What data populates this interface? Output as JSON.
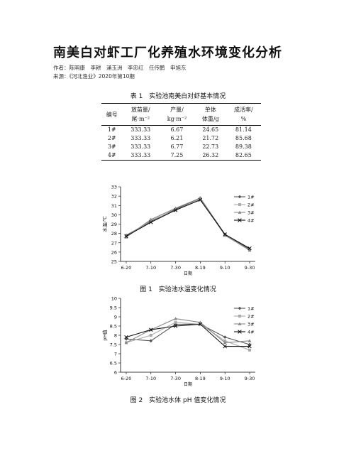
{
  "title": "南美白对虾工厂化养殖水环境变化分析",
  "authors": "作者：陈明康　李耕　涌玉洲　李忠红　任传鹏　申旭东",
  "source": "来源：《河北渔业》2020年第10期",
  "table": {
    "caption": "表 1　实验池南美白对虾基本情况",
    "headers": [
      [
        "编号",
        ""
      ],
      [
        "放苗量/",
        "尾·m⁻²"
      ],
      [
        "产量/",
        "kg·m⁻²"
      ],
      [
        "单体",
        "体重/g"
      ],
      [
        "成活率/",
        "%"
      ]
    ],
    "rows": [
      [
        "1#",
        "333.33",
        "6.67",
        "24.65",
        "81.14"
      ],
      [
        "2#",
        "333.33",
        "6.21",
        "21.72",
        "85.68"
      ],
      [
        "3#",
        "333.33",
        "6.77",
        "22.73",
        "89.38"
      ],
      [
        "4#",
        "333.33",
        "7.25",
        "26.32",
        "82.65"
      ]
    ]
  },
  "chart_data": [
    {
      "type": "line",
      "caption": "图 1　实验池水温变化情况",
      "xlabel": "日期",
      "ylabel": "水温/℃",
      "categories": [
        "6-20",
        "7-10",
        "7-30",
        "8-19",
        "9-10",
        "9-30"
      ],
      "ylim": [
        25,
        33
      ],
      "yticks": [
        25,
        26,
        27,
        28,
        29,
        30,
        31,
        32,
        33
      ],
      "series": [
        {
          "name": "1#",
          "values": [
            27.8,
            29.3,
            30.6,
            31.8,
            27.9,
            26.3
          ],
          "color": "#555555",
          "marker": "diamond"
        },
        {
          "name": "2#",
          "values": [
            27.7,
            29.4,
            30.5,
            31.7,
            27.8,
            26.2
          ],
          "color": "#aaaaaa",
          "marker": "square"
        },
        {
          "name": "3#",
          "values": [
            27.6,
            29.5,
            30.7,
            31.8,
            27.8,
            26.2
          ],
          "color": "#888888",
          "marker": "triangle"
        },
        {
          "name": "4#",
          "values": [
            27.7,
            29.2,
            30.5,
            31.6,
            27.9,
            26.4
          ],
          "color": "#111111",
          "marker": "x"
        }
      ]
    },
    {
      "type": "line",
      "caption": "图 2　实验池水体 pH 值变化情况",
      "xlabel": "日期",
      "ylabel": "pH值",
      "categories": [
        "6-20",
        "7-10",
        "7-30",
        "8-19",
        "9-10",
        "9-30"
      ],
      "ylim": [
        6,
        10
      ],
      "yticks": [
        6,
        6.5,
        7,
        7.5,
        8,
        8.5,
        9,
        9.5,
        10
      ],
      "series": [
        {
          "name": "1#",
          "values": [
            7.8,
            7.7,
            8.6,
            8.6,
            7.9,
            7.5
          ],
          "color": "#555555",
          "marker": "diamond"
        },
        {
          "name": "2#",
          "values": [
            7.6,
            8.0,
            8.7,
            8.6,
            7.7,
            7.2
          ],
          "color": "#aaaaaa",
          "marker": "square"
        },
        {
          "name": "3#",
          "values": [
            7.6,
            8.3,
            8.9,
            8.7,
            7.6,
            7.7
          ],
          "color": "#888888",
          "marker": "triangle"
        },
        {
          "name": "4#",
          "values": [
            7.9,
            8.3,
            8.5,
            8.6,
            7.4,
            7.4
          ],
          "color": "#111111",
          "marker": "x"
        }
      ]
    }
  ]
}
